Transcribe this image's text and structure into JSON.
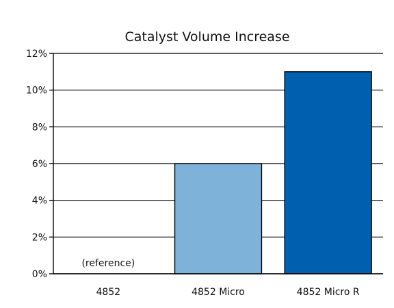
{
  "chart_data": {
    "type": "bar",
    "title": "Catalyst Volume Increase",
    "xlabel": "",
    "ylabel": "",
    "categories": [
      "4852",
      "4852 Micro",
      "4852 Micro R"
    ],
    "values": [
      0,
      6,
      11
    ],
    "bar_colors": [
      "#ffffff",
      "#7fb2d9",
      "#0060b0"
    ],
    "annotations": [
      {
        "category": "4852",
        "text": "(reference)"
      }
    ],
    "ylim": [
      0,
      12
    ],
    "yticks": [
      0,
      2,
      4,
      6,
      8,
      10,
      12
    ],
    "ytick_labels": [
      "0%",
      "2%",
      "4%",
      "6%",
      "8%",
      "10%",
      "12%"
    ],
    "grid": true,
    "legend": "none"
  }
}
